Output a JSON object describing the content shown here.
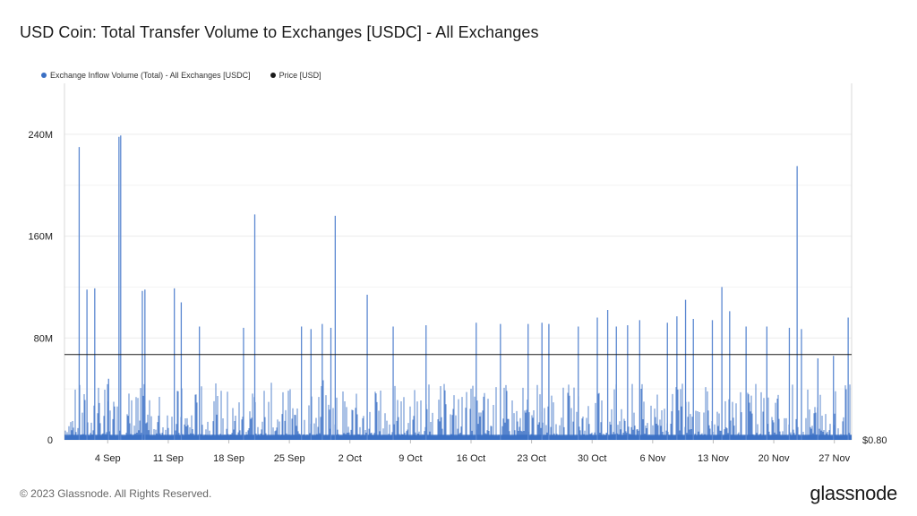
{
  "title": "USD Coin: Total Transfer Volume to Exchanges [USDC] - All Exchanges",
  "legend": [
    {
      "label": "Exchange Inflow Volume (Total) - All Exchanges [USDC]",
      "color": "#3a6fc4"
    },
    {
      "label": "Price [USD]",
      "color": "#1a1a1a"
    }
  ],
  "footer": "© 2023 Glassnode. All Rights Reserved.",
  "brand": "glassnode",
  "chart_data": {
    "type": "bar",
    "x_ticks": [
      "4 Sep",
      "11 Sep",
      "18 Sep",
      "25 Sep",
      "2 Oct",
      "9 Oct",
      "16 Oct",
      "23 Oct",
      "30 Oct",
      "6 Nov",
      "13 Nov",
      "20 Nov",
      "27 Nov"
    ],
    "y_ticks": [
      {
        "value": 0,
        "label": "0"
      },
      {
        "value": 80,
        "label": "80M"
      },
      {
        "value": 160,
        "label": "160M"
      },
      {
        "value": 240,
        "label": "240M"
      }
    ],
    "y_unit": "M",
    "ylim": [
      0,
      280
    ],
    "xlim_days": [
      0,
      91
    ],
    "x_start_date": "2023-08-30",
    "price_axis_label": "$0.80",
    "price_level": 0.8,
    "price_line_value_left_axis": 67,
    "spikes": [
      {
        "day": 1.7,
        "value": 230
      },
      {
        "day": 2.6,
        "value": 118
      },
      {
        "day": 3.5,
        "value": 119
      },
      {
        "day": 5.1,
        "value": 48
      },
      {
        "day": 6.3,
        "value": 238
      },
      {
        "day": 6.5,
        "value": 239
      },
      {
        "day": 9.0,
        "value": 117
      },
      {
        "day": 9.3,
        "value": 118
      },
      {
        "day": 12.7,
        "value": 119
      },
      {
        "day": 13.5,
        "value": 108
      },
      {
        "day": 15.6,
        "value": 89
      },
      {
        "day": 20.7,
        "value": 88
      },
      {
        "day": 22.0,
        "value": 177
      },
      {
        "day": 27.4,
        "value": 89
      },
      {
        "day": 28.5,
        "value": 87
      },
      {
        "day": 29.8,
        "value": 91
      },
      {
        "day": 30.8,
        "value": 88
      },
      {
        "day": 31.3,
        "value": 176
      },
      {
        "day": 35.0,
        "value": 114
      },
      {
        "day": 38.0,
        "value": 89
      },
      {
        "day": 41.8,
        "value": 90
      },
      {
        "day": 47.6,
        "value": 92
      },
      {
        "day": 50.4,
        "value": 91
      },
      {
        "day": 53.6,
        "value": 91
      },
      {
        "day": 55.2,
        "value": 92
      },
      {
        "day": 56.0,
        "value": 91
      },
      {
        "day": 59.4,
        "value": 89
      },
      {
        "day": 61.6,
        "value": 96
      },
      {
        "day": 62.8,
        "value": 102
      },
      {
        "day": 63.8,
        "value": 89
      },
      {
        "day": 65.1,
        "value": 90
      },
      {
        "day": 66.5,
        "value": 94
      },
      {
        "day": 69.7,
        "value": 92
      },
      {
        "day": 70.8,
        "value": 97
      },
      {
        "day": 71.8,
        "value": 110
      },
      {
        "day": 72.7,
        "value": 95
      },
      {
        "day": 74.9,
        "value": 94
      },
      {
        "day": 76.0,
        "value": 120
      },
      {
        "day": 76.9,
        "value": 101
      },
      {
        "day": 78.8,
        "value": 89
      },
      {
        "day": 81.2,
        "value": 89
      },
      {
        "day": 83.8,
        "value": 88
      },
      {
        "day": 84.7,
        "value": 215
      },
      {
        "day": 85.2,
        "value": 87
      },
      {
        "day": 87.1,
        "value": 64
      },
      {
        "day": 88.9,
        "value": 66
      },
      {
        "day": 90.6,
        "value": 96
      }
    ],
    "baseline_range_M": [
      3,
      45
    ]
  }
}
